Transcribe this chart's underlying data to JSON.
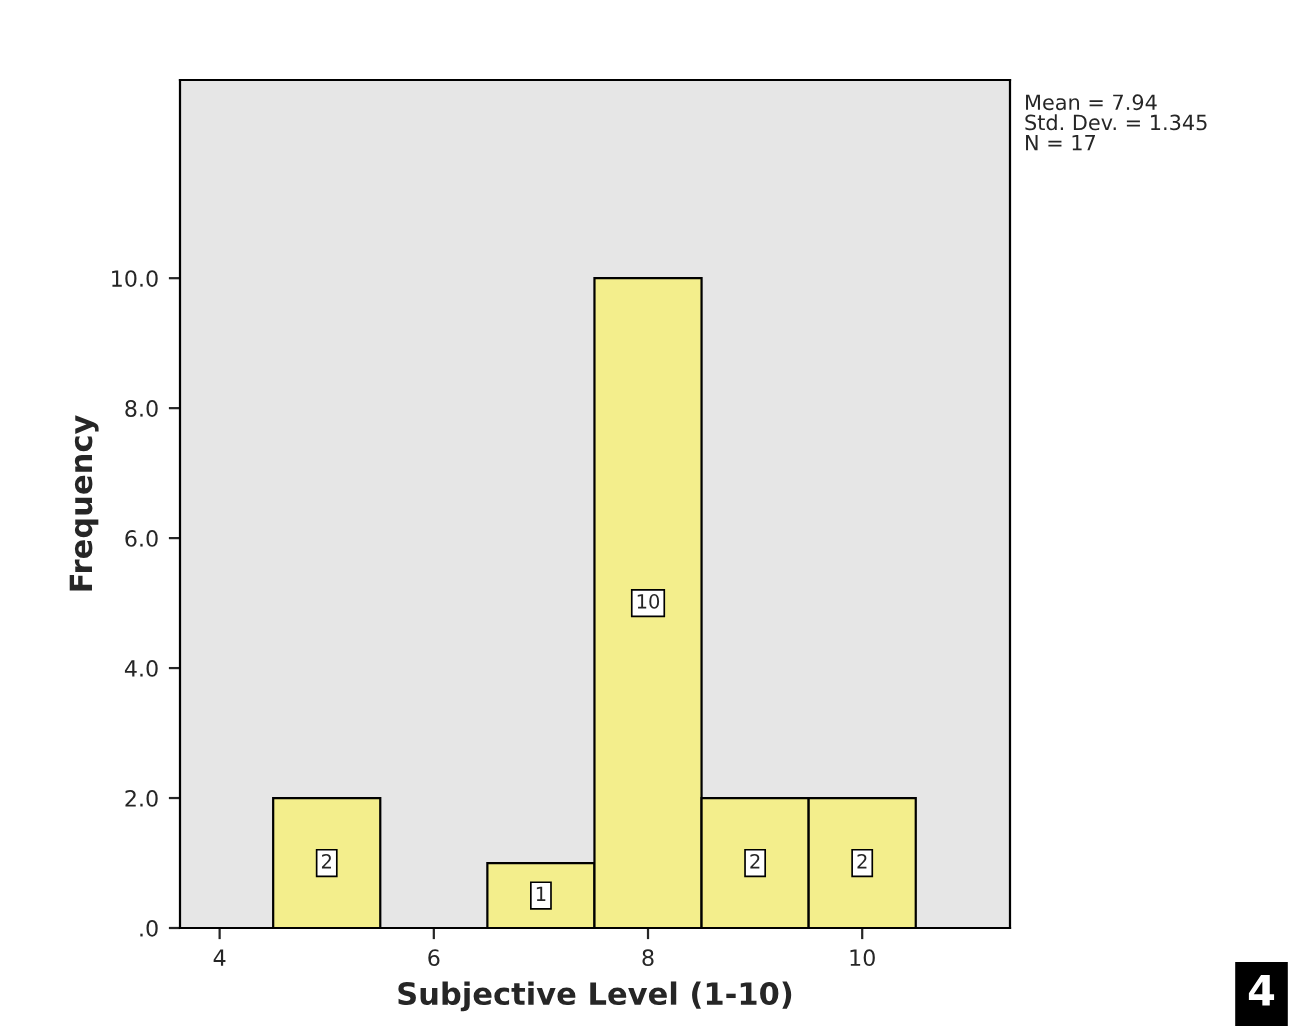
{
  "chart_data": {
    "type": "histogram",
    "xlabel": "Subjective Level (1-10)",
    "ylabel": "Frequency",
    "bins": [
      4.5,
      5.5,
      6.5,
      7.5,
      8.5,
      9.5,
      10.5
    ],
    "values": [
      2,
      0,
      1,
      10,
      2,
      2
    ],
    "value_labels": [
      "2",
      null,
      "1",
      "10",
      "2",
      "2"
    ],
    "color": "#f3ee8c",
    "xlim": [
      3.63,
      11.38
    ],
    "xticks": [
      4,
      6,
      8,
      10
    ],
    "ylim": [
      0,
      13.05
    ],
    "yticks": [
      {
        "value": 0,
        "label": ".0"
      },
      {
        "value": 2,
        "label": "2.0"
      },
      {
        "value": 4,
        "label": "4.0"
      },
      {
        "value": 6,
        "label": "6.0"
      },
      {
        "value": 8,
        "label": "8.0"
      },
      {
        "value": 10,
        "label": "10.0"
      }
    ],
    "grid": false,
    "legend": false,
    "annotations": [
      "Mean = 7.94\nStd. Dev. = 1.345\nN = 17",
      "4"
    ]
  }
}
